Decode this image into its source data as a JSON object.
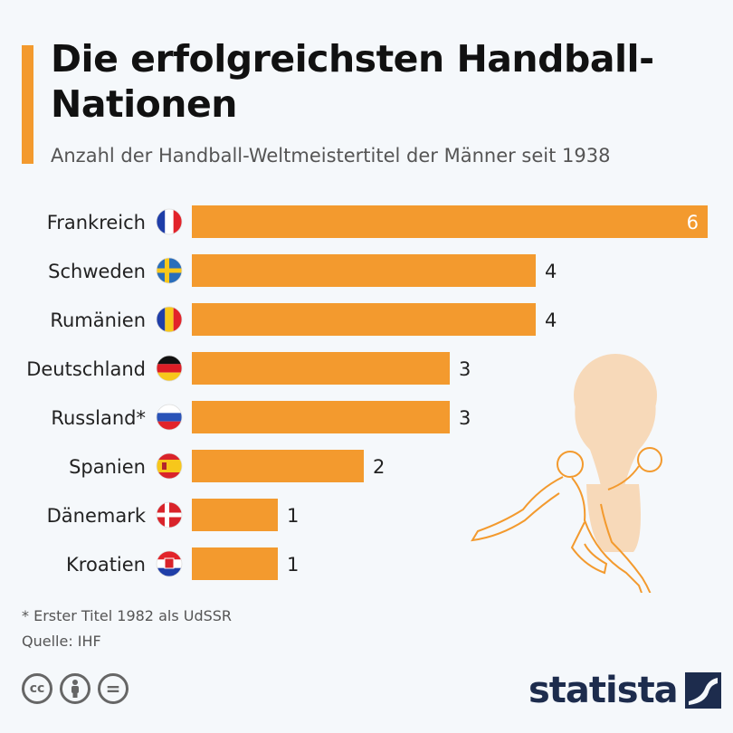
{
  "header": {
    "title": "Die erfolgreichsten Handball-Nationen",
    "subtitle": "Anzahl der Handball-Weltmeistertitel der Männer seit 1938"
  },
  "colors": {
    "accent": "#f39a2e",
    "bar": "#f39a2e",
    "brand": "#1d2c4d"
  },
  "chart_data": {
    "type": "bar",
    "orientation": "horizontal",
    "categories": [
      "Frankreich",
      "Schweden",
      "Rumänien",
      "Deutschland",
      "Russland*",
      "Spanien",
      "Dänemark",
      "Kroatien"
    ],
    "values": [
      6,
      4,
      4,
      3,
      3,
      2,
      1,
      1
    ],
    "flags": [
      "france-flag-icon",
      "sweden-flag-icon",
      "romania-flag-icon",
      "germany-flag-icon",
      "russia-flag-icon",
      "spain-flag-icon",
      "denmark-flag-icon",
      "croatia-flag-icon"
    ],
    "xlim": [
      0,
      6
    ],
    "grid": false,
    "data_labels": true
  },
  "footer": {
    "footnote": "* Erster Titel 1982 als UdSSR",
    "source": "Quelle: IHF",
    "license_icons": [
      "cc-icon",
      "by-icon",
      "nd-icon"
    ],
    "cc_label": "cc",
    "nd_label": "=",
    "brand": "statista"
  }
}
